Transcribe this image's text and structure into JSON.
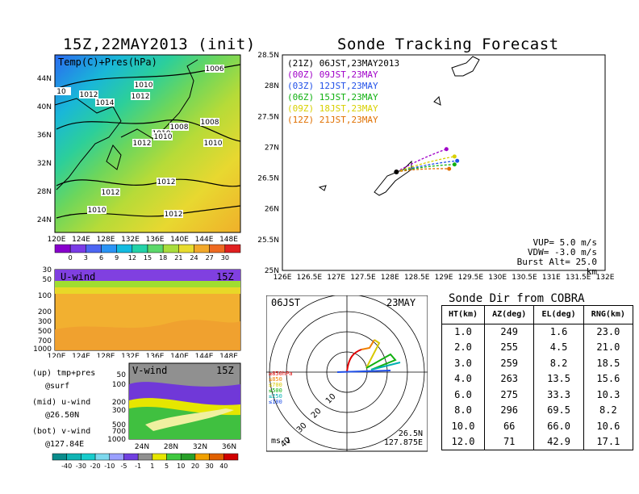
{
  "left": {
    "title": "15Z,22MAY2013 (init)",
    "map": {
      "panel_label": "Temp(C)+Pres(hPa)",
      "lat_ticks": [
        "44N",
        "40N",
        "36N",
        "32N",
        "28N",
        "24N"
      ],
      "lon_ticks": [
        "120E",
        "124E",
        "128E",
        "132E",
        "136E",
        "140E",
        "144E",
        "148E"
      ],
      "isobar_labels": [
        "1006",
        "1010",
        "10",
        "1012",
        "1014",
        "1012",
        "1010",
        "1008",
        "1008",
        "1012",
        "1010",
        "1010",
        "1012",
        "1012",
        "1010",
        "1012"
      ],
      "colorbar_ticks": [
        "0",
        "3",
        "6",
        "9",
        "12",
        "15",
        "18",
        "21",
        "24",
        "27",
        "30"
      ],
      "colorbar_colors": [
        "#8800cc",
        "#7a3be6",
        "#4d66f2",
        "#2b94f5",
        "#13bbe0",
        "#24d2a8",
        "#5cd86a",
        "#a8dd3c",
        "#e8dc2e",
        "#f2a82a",
        "#ee6a22",
        "#e02020"
      ]
    },
    "u_panel": {
      "label": "U-wind",
      "time": "15Z",
      "y_ticks": [
        "30",
        "50",
        "100",
        "200",
        "300",
        "500",
        "700",
        "1000"
      ],
      "x_ticks": [
        "120E",
        "124E",
        "128E",
        "132E",
        "136E",
        "140E",
        "144E",
        "148E"
      ]
    },
    "v_panel": {
      "label": "V-wind",
      "time": "15Z",
      "y_ticks": [
        "50",
        "100",
        "200",
        "300",
        "500",
        "700",
        "1000"
      ],
      "x_ticks": [
        "24N",
        "28N",
        "32N",
        "36N"
      ]
    },
    "legend_lines": [
      "(up) tmp+pres",
      "@surf",
      "(mid) u-wind",
      "@26.50N",
      "(bot) v-wind",
      "@127.84E"
    ],
    "wind_colorbar_ticks": [
      "-40",
      "-30",
      "-20",
      "-10",
      "-5",
      "-1",
      "1",
      "5",
      "10",
      "20",
      "30",
      "40"
    ],
    "wind_colorbar_colors": [
      "#0a8c8c",
      "#10b4b4",
      "#18cccc",
      "#7dd8ee",
      "#9aa0ff",
      "#7040e0",
      "#909090",
      "#e6e600",
      "#40c840",
      "#28a028",
      "#f0a000",
      "#e06000",
      "#d00000"
    ]
  },
  "tracking": {
    "title": "Sonde Tracking Forecast",
    "y_ticks": [
      "28.5N",
      "28N",
      "27.5N",
      "27N",
      "26.5N",
      "26N",
      "25.5N",
      "25N"
    ],
    "x_ticks": [
      "126E",
      "126.5E",
      "127E",
      "127.5E",
      "128E",
      "128.5E",
      "129E",
      "129.5E",
      "130E",
      "130.5E",
      "131E",
      "131.5E",
      "132E"
    ],
    "legend": [
      {
        "text": "(21Z) 06JST,23MAY2013",
        "color": "#000000"
      },
      {
        "text": "(00Z) 09JST,23MAY",
        "color": "#a000c8"
      },
      {
        "text": "(03Z) 12JST,23MAY",
        "color": "#2050e8"
      },
      {
        "text": "(06Z) 15JST,23MAY",
        "color": "#10b010"
      },
      {
        "text": "(09Z) 18JST,23MAY",
        "color": "#d8d000"
      },
      {
        "text": "(12Z) 21JST,23MAY",
        "color": "#e07000"
      }
    ],
    "params": [
      "VUP= 5.0 m/s",
      "VDW= -3.0 m/s",
      "Burst Alt= 25.0 km"
    ],
    "tracks": [
      {
        "color": "#a000c8",
        "end": [
          129.05,
          26.97
        ]
      },
      {
        "color": "#2050e8",
        "end": [
          129.25,
          26.78
        ]
      },
      {
        "color": "#10b010",
        "end": [
          129.2,
          26.72
        ]
      },
      {
        "color": "#d8d000",
        "end": [
          129.2,
          26.85
        ]
      },
      {
        "color": "#e07000",
        "end": [
          129.1,
          26.65
        ]
      }
    ],
    "launch": [
      128.12,
      26.6
    ]
  },
  "polar": {
    "time_label": "06JST",
    "date_label": "23MAY",
    "unit_label": "ms-1",
    "loc_lat": "26.5N",
    "loc_lon": "127.875E",
    "ring_labels": [
      "10",
      "20",
      "30",
      "40"
    ],
    "levels": [
      {
        "text": "≥850hPa",
        "color": "#e00000"
      },
      {
        "text": "≤850",
        "color": "#f08000"
      },
      {
        "text": "≤700",
        "color": "#d8c800"
      },
      {
        "text": "≤500",
        "color": "#10b010"
      },
      {
        "text": "≤250",
        "color": "#00b0b0"
      },
      {
        "text": "≤100",
        "color": "#2050e8"
      }
    ]
  },
  "cobra": {
    "title": "Sonde Dir from COBRA",
    "headers": [
      "HT(km)",
      "AZ(deg)",
      "EL(deg)",
      "RNG(km)"
    ],
    "rows": [
      [
        "1.0",
        "249",
        "1.6",
        "23.0"
      ],
      [
        "2.0",
        "255",
        "4.5",
        "21.0"
      ],
      [
        "3.0",
        "259",
        "8.2",
        "18.5"
      ],
      [
        "4.0",
        "263",
        "13.5",
        "15.6"
      ],
      [
        "6.0",
        "275",
        "33.3",
        "10.3"
      ],
      [
        "8.0",
        "296",
        "69.5",
        "8.2"
      ],
      [
        "10.0",
        "66",
        "66.0",
        "10.6"
      ],
      [
        "12.0",
        "71",
        "42.9",
        "17.1"
      ]
    ]
  },
  "chart_data": [
    {
      "type": "heatmap",
      "title": "15Z,22MAY2013 (init)",
      "subtitle": "Temp(C)+Pres(hPa)",
      "xlim": [
        120,
        149
      ],
      "ylim": [
        22,
        48
      ],
      "colorbar": [
        0,
        3,
        6,
        9,
        12,
        15,
        18,
        21,
        24,
        27,
        30
      ]
    },
    {
      "type": "line",
      "title": "Sonde Tracking Forecast",
      "xlim": [
        126,
        132
      ],
      "ylim": [
        25,
        28.5
      ],
      "series": [
        {
          "name": "(00Z) 09JST,23MAY",
          "x": [
            128.12,
            128.5,
            128.8,
            129.05
          ],
          "y": [
            26.6,
            26.8,
            26.9,
            26.97
          ]
        },
        {
          "name": "(03Z) 12JST,23MAY",
          "x": [
            128.12,
            128.6,
            129.0,
            129.25
          ],
          "y": [
            26.6,
            26.68,
            26.74,
            26.78
          ]
        },
        {
          "name": "(06Z) 15JST,23MAY",
          "x": [
            128.12,
            128.6,
            129.0,
            129.2
          ],
          "y": [
            26.6,
            26.63,
            26.68,
            26.72
          ]
        },
        {
          "name": "(09Z) 18JST,23MAY",
          "x": [
            128.12,
            128.6,
            129.0,
            129.2
          ],
          "y": [
            26.6,
            26.72,
            26.8,
            26.85
          ]
        },
        {
          "name": "(12Z) 21JST,23MAY",
          "x": [
            128.12,
            128.5,
            128.9,
            129.1
          ],
          "y": [
            26.6,
            26.6,
            26.63,
            26.65
          ]
        }
      ]
    },
    {
      "type": "table",
      "title": "Sonde Dir from COBRA",
      "columns": [
        "HT(km)",
        "AZ(deg)",
        "EL(deg)",
        "RNG(km)"
      ]
    }
  ]
}
